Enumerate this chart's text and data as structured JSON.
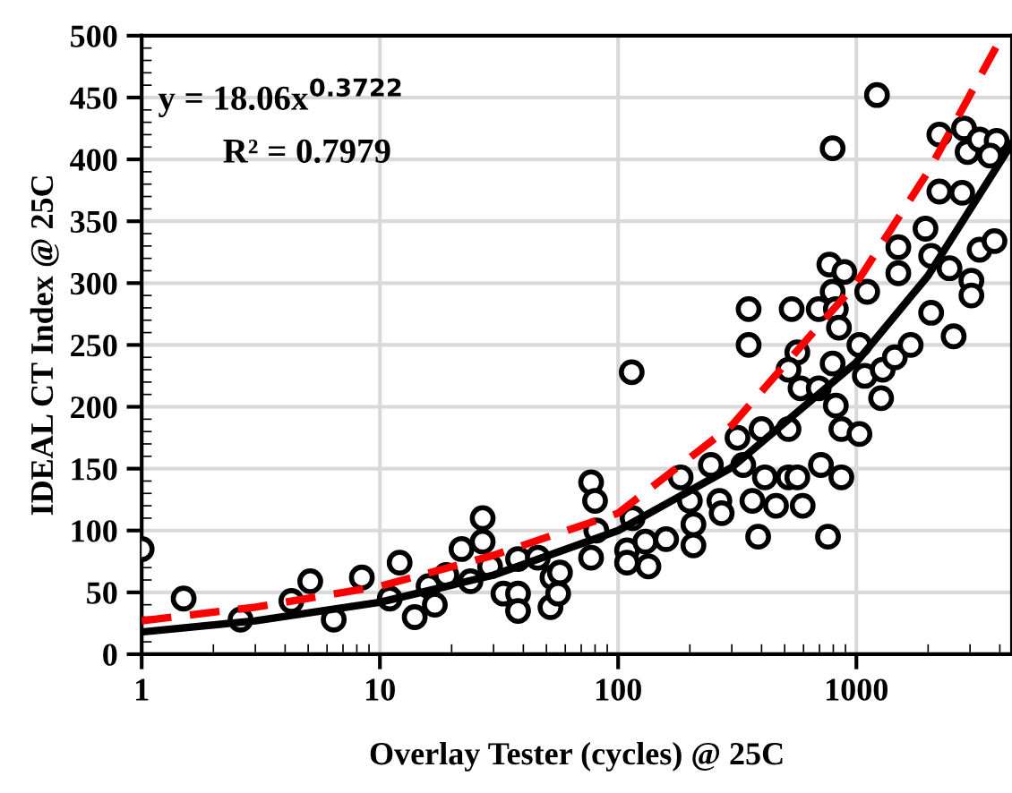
{
  "chart_data": {
    "type": "scatter",
    "xlabel": "Overlay Tester (cycles) @ 25C",
    "ylabel": "IDEAL CT Index @ 25C",
    "log": "x",
    "xlim": [
      1,
      4500
    ],
    "xticks": [
      1,
      10,
      100,
      1000
    ],
    "ylim": [
      0,
      500
    ],
    "yticks": [
      0,
      50,
      100,
      150,
      200,
      250,
      300,
      350,
      400,
      450,
      500
    ],
    "grid": true,
    "legend": false,
    "marker": "circle",
    "annotations": [
      "y = 18.06x$^{0.3722}$",
      "R² = 0.7979"
    ],
    "series": [
      {
        "color": "#000000",
        "x": [
          1.0,
          1.5,
          2.6,
          4.25,
          5.1,
          6.4,
          8.4,
          11,
          12.1,
          14,
          16,
          17,
          19,
          22,
          24,
          27,
          27,
          29,
          33,
          38,
          38,
          38,
          46,
          52,
          53,
          56,
          57,
          77,
          77,
          80,
          81,
          109,
          109,
          115,
          130,
          134,
          159,
          183,
          200,
          207,
          207,
          245,
          114,
          266,
          272,
          317,
          335,
          353,
          353,
          366,
          387,
          400,
          413,
          460,
          519,
          535,
          519,
          565,
          519,
          583,
          565,
          595,
          695,
          695,
          710,
          760,
          770,
          795,
          795,
          820,
          845,
          795,
          820,
          865,
          865,
          890,
          1030,
          1030,
          1085,
          1110,
          1220,
          1270,
          1290,
          1450,
          1500,
          1500,
          1690,
          1950,
          2060,
          2060,
          2230,
          2230,
          2460,
          2560,
          2780,
          2830,
          2930,
          3040,
          3040,
          3290,
          3290,
          3800,
          3880,
          3640
        ],
        "values": [
          85,
          45,
          28,
          43,
          59,
          28,
          62,
          45,
          74,
          30,
          55,
          40,
          64,
          85,
          59,
          110,
          91,
          71,
          49,
          49,
          35,
          77,
          78,
          38,
          62,
          49,
          66,
          78,
          139,
          124,
          100,
          84,
          74,
          110,
          91,
          71,
          93,
          143,
          124,
          105,
          88,
          153,
          228,
          124,
          114,
          175,
          153,
          279,
          250,
          124,
          95,
          182,
          143,
          120,
          143,
          279,
          182,
          244,
          230,
          215,
          143,
          120,
          215,
          279,
          153,
          95,
          315,
          409,
          293,
          279,
          264,
          235,
          201,
          182,
          143,
          309,
          250,
          178,
          225,
          293,
          452,
          207,
          230,
          240,
          329,
          308,
          250,
          344,
          322,
          276,
          374,
          420,
          312,
          257,
          373,
          425,
          406,
          302,
          290,
          327,
          416,
          334,
          415,
          403
        ]
      },
      {
        "type": "line",
        "color": "#000000",
        "line_style": "solid",
        "marker": "none",
        "x": [
          1,
          3,
          10,
          30,
          100,
          300,
          1000,
          2000,
          4500
        ],
        "values": [
          18,
          27,
          42,
          64,
          100,
          151,
          236,
          306,
          413
        ]
      },
      {
        "type": "line",
        "color": "#ff0000",
        "line_style": "dashed",
        "marker": "none",
        "x": [
          1,
          3,
          10,
          30,
          100,
          300,
          1000,
          2000,
          4100
        ],
        "values": [
          27,
          38,
          55,
          80,
          114,
          185,
          300,
          390,
          500
        ]
      }
    ]
  }
}
